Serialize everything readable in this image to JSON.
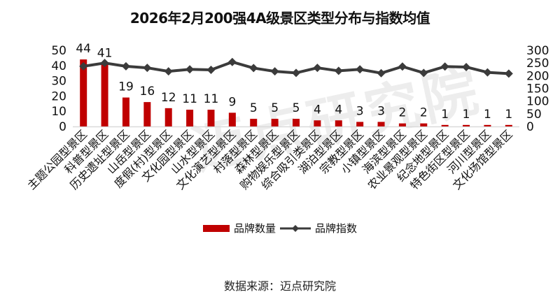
{
  "title": "2026年2月200强4A级景区类型分布与指数均值",
  "legend": {
    "bar_label": "品牌数量",
    "line_label": "品牌指数"
  },
  "source": "数据来源：迈点研究院",
  "watermark": "迈点研究院",
  "colors": {
    "bar": "#c00000",
    "line": "#3b3b3b",
    "axis": "#d9d9d9"
  },
  "chart_data": {
    "type": "bar+line",
    "title": "2026年2月200强4A级景区类型分布与指数均值",
    "categories": [
      "主题公园型景区",
      "科普型景区",
      "历史遗址型景区",
      "山岳型景区",
      "度假(村)型景区",
      "文化园型景区",
      "山水型景区",
      "文化演艺型景区",
      "村落型景区",
      "森林型景区",
      "购物娱乐型景区",
      "综合吸引类景区",
      "湖泊型景区",
      "宗教型景区",
      "小镇型景区",
      "海滨型景区",
      "农业景观型景区",
      "纪念地型景区",
      "特色街区型景区",
      "河川型景区",
      "文化场馆型景区"
    ],
    "series": [
      {
        "name": "品牌数量",
        "type": "bar",
        "axis": "left",
        "values": [
          44,
          41,
          19,
          16,
          12,
          11,
          11,
          9,
          5,
          5,
          5,
          4,
          4,
          3,
          3,
          2,
          2,
          1,
          1,
          1,
          1
        ]
      },
      {
        "name": "品牌指数",
        "type": "line",
        "axis": "right",
        "values": [
          237,
          250,
          237,
          231,
          217,
          225,
          223,
          254,
          230,
          217,
          211,
          231,
          219,
          225,
          210,
          236,
          211,
          236,
          234,
          213,
          208
        ]
      }
    ],
    "left_axis": {
      "min": 0,
      "max": 50,
      "ticks": [
        0,
        10,
        20,
        30,
        40,
        50
      ]
    },
    "right_axis": {
      "min": 0,
      "max": 300,
      "ticks": [
        0,
        50,
        100,
        150,
        200,
        250,
        300
      ]
    },
    "grid": false,
    "legend_position": "bottom",
    "data_labels": true
  }
}
